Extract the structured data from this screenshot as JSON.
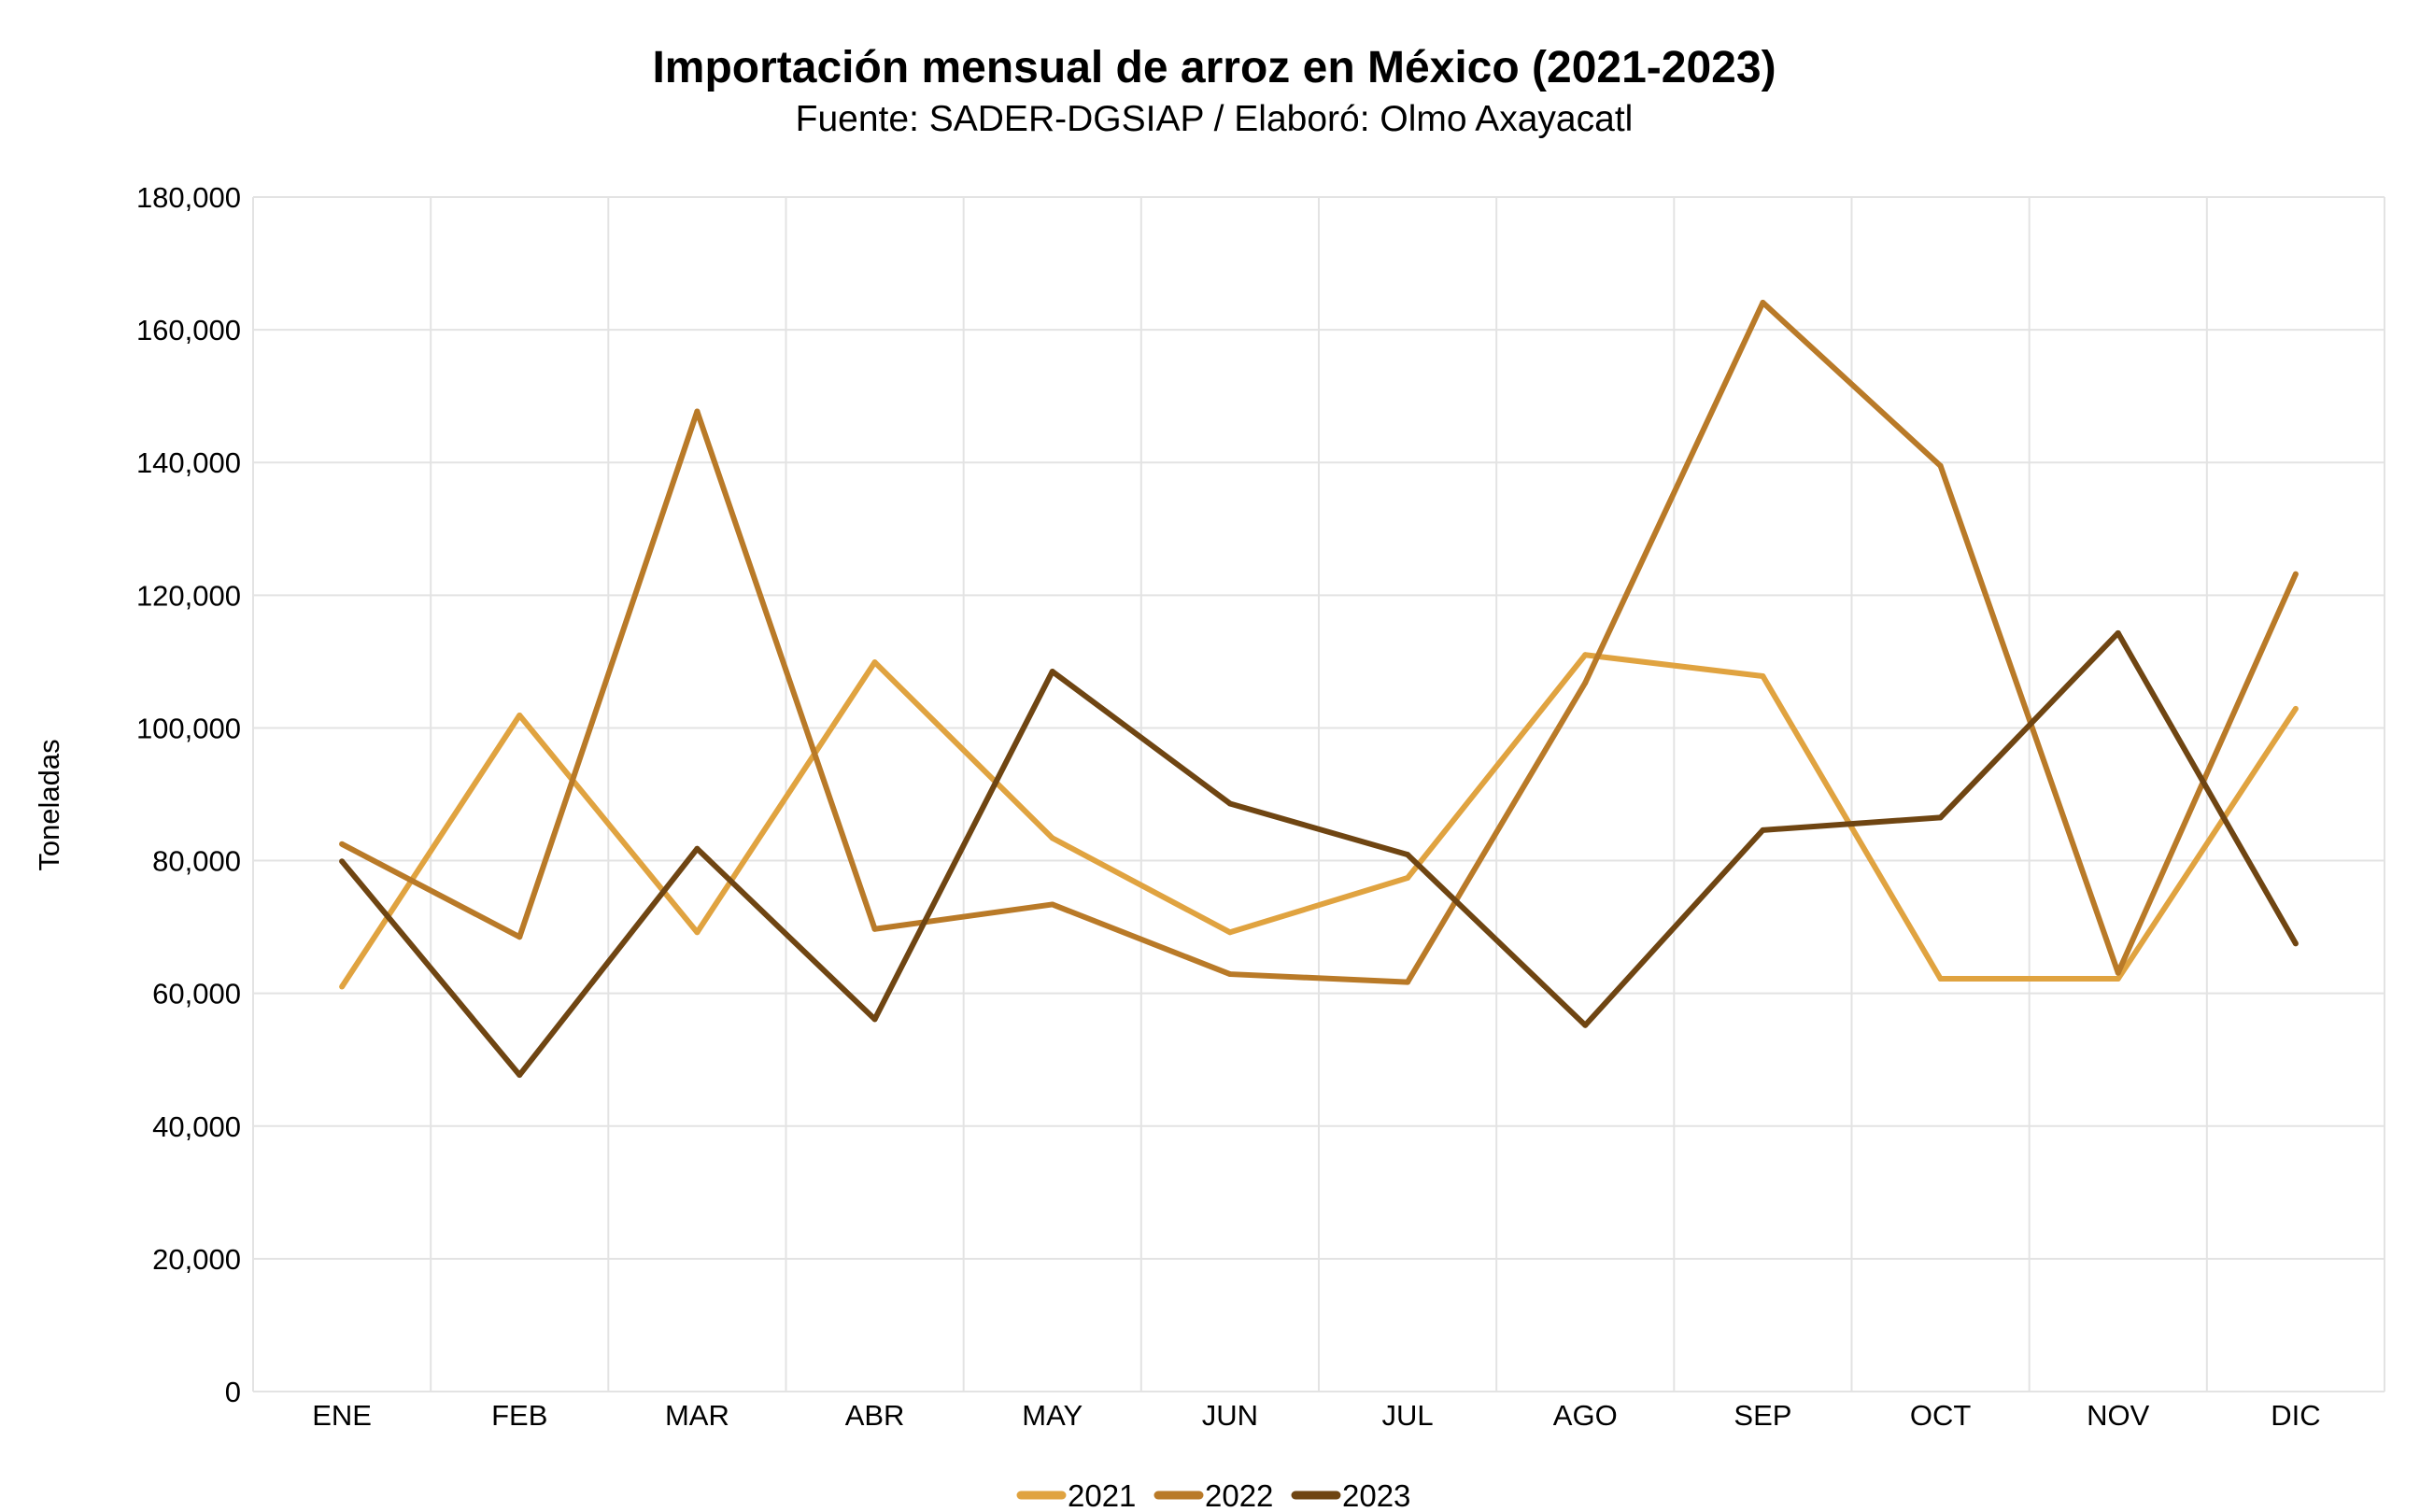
{
  "chart_data": {
    "type": "line",
    "title": "Importación mensual de arroz en México (2021-2023)",
    "subtitle": "Fuente: SADER-DGSIAP / Elaboró: Olmo Axayacatl",
    "xlabel": "",
    "ylabel": "Toneladas",
    "ylim": [
      0,
      180000
    ],
    "yticks": [
      "0",
      "20,000",
      "40,000",
      "60,000",
      "80,000",
      "100,000",
      "120,000",
      "140,000",
      "160,000",
      "180,000"
    ],
    "categories": [
      "ENE",
      "FEB",
      "MAR",
      "ABR",
      "MAY",
      "JUN",
      "JUL",
      "AGO",
      "SEP",
      "OCT",
      "NOV",
      "DIC"
    ],
    "grid": true,
    "legend_position": "bottom",
    "series": [
      {
        "name": "2021",
        "color": "#E0A340",
        "values": [
          61000,
          101900,
          69200,
          109900,
          83400,
          69200,
          77400,
          111000,
          107800,
          62200,
          62200,
          102900
        ]
      },
      {
        "name": "2022",
        "color": "#B97A28",
        "values": [
          82500,
          68500,
          147700,
          69700,
          73400,
          62900,
          61700,
          106800,
          164100,
          139500,
          63100,
          123200
        ]
      },
      {
        "name": "2023",
        "color": "#6F4512",
        "values": [
          79900,
          47700,
          81800,
          56100,
          108500,
          88600,
          80900,
          55200,
          84600,
          86500,
          114300,
          67500
        ]
      }
    ]
  }
}
